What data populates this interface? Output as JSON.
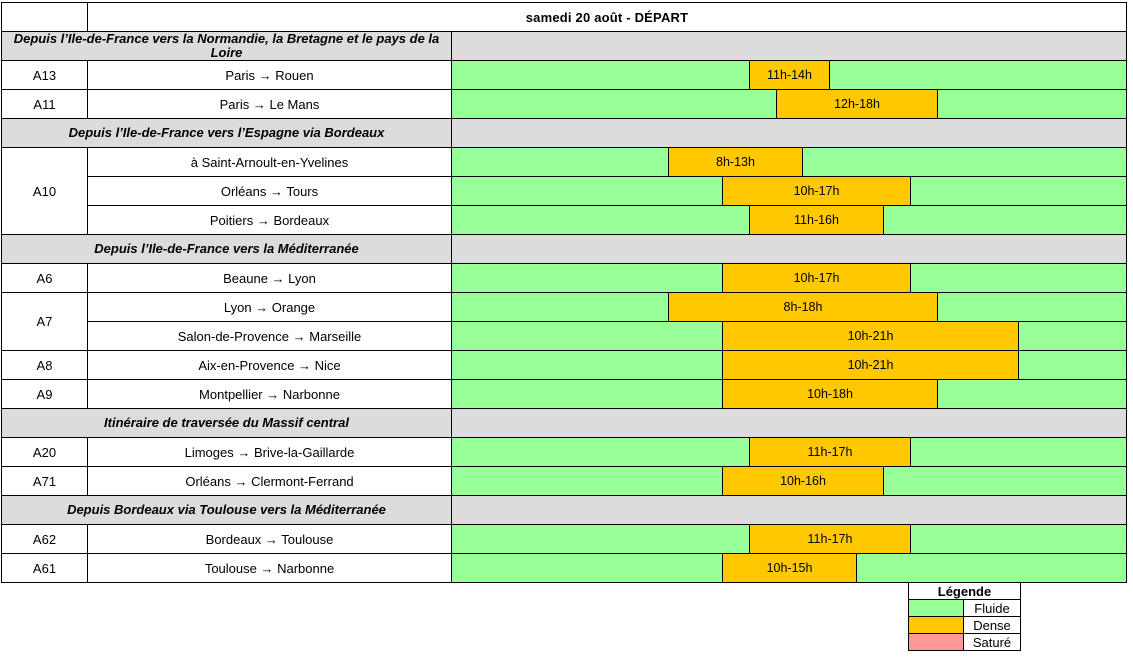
{
  "title": "samedi 20 août - DÉPART",
  "colors": {
    "fluide": "#99FF99",
    "dense": "#FFC800",
    "sature": "#FF9999",
    "section_bg": "#DCDCDC",
    "border": "#000000"
  },
  "timeline": {
    "hours_span": 25
  },
  "sections": [
    {
      "header": "Depuis l’Ile-de-France vers la Normandie, la Bretagne et le pays de la Loire",
      "rows": [
        {
          "road": "A13",
          "span": 1,
          "route": "Paris → Rouen",
          "band": {
            "label": "11h-14h",
            "start": 11,
            "end": 14
          }
        },
        {
          "road": "A11",
          "span": 1,
          "route": "Paris → Le Mans",
          "band": {
            "label": "12h-18h",
            "start": 12,
            "end": 18
          }
        }
      ]
    },
    {
      "header": "Depuis l’Ile-de-France vers l’Espagne via Bordeaux",
      "rows": [
        {
          "road": "A10",
          "span": 3,
          "route": "à Saint-Arnoult-en-Yvelines",
          "band": {
            "label": "8h-13h",
            "start": 8,
            "end": 13
          }
        },
        {
          "route": "Orléans → Tours",
          "band": {
            "label": "10h-17h",
            "start": 10,
            "end": 17
          }
        },
        {
          "route": "Poitiers → Bordeaux",
          "band": {
            "label": "11h-16h",
            "start": 11,
            "end": 16
          }
        }
      ]
    },
    {
      "header": "Depuis l’Ile-de-France vers la Méditerranée",
      "rows": [
        {
          "road": "A6",
          "span": 1,
          "route": "Beaune → Lyon",
          "band": {
            "label": "10h-17h",
            "start": 10,
            "end": 17
          }
        },
        {
          "road": "A7",
          "span": 2,
          "route": "Lyon → Orange",
          "band": {
            "label": "8h-18h",
            "start": 8,
            "end": 18
          }
        },
        {
          "route": "Salon-de-Provence → Marseille",
          "band": {
            "label": "10h-21h",
            "start": 10,
            "end": 21
          }
        },
        {
          "road": "A8",
          "span": 1,
          "route": "Aix-en-Provence → Nice",
          "band": {
            "label": "10h-21h",
            "start": 10,
            "end": 21
          }
        },
        {
          "road": "A9",
          "span": 1,
          "route": "Montpellier → Narbonne",
          "band": {
            "label": "10h-18h",
            "start": 10,
            "end": 18
          }
        }
      ]
    },
    {
      "header": "Itinéraire de traversée du Massif central",
      "rows": [
        {
          "road": "A20",
          "span": 1,
          "route": "Limoges → Brive-la-Gaillarde",
          "band": {
            "label": "11h-17h",
            "start": 11,
            "end": 17
          }
        },
        {
          "road": "A71",
          "span": 1,
          "route": "Orléans → Clermont-Ferrand",
          "band": {
            "label": "10h-16h",
            "start": 10,
            "end": 16
          }
        }
      ]
    },
    {
      "header": "Depuis Bordeaux via Toulouse vers la Méditerranée",
      "rows": [
        {
          "road": "A62",
          "span": 1,
          "route": "Bordeaux → Toulouse",
          "band": {
            "label": "11h-17h",
            "start": 11,
            "end": 17
          }
        },
        {
          "road": "A61",
          "span": 1,
          "route": "Toulouse → Narbonne",
          "band": {
            "label": "10h-15h",
            "start": 10,
            "end": 15
          }
        }
      ]
    }
  ],
  "legend": {
    "title": "Légende",
    "items": [
      {
        "label": "Fluide",
        "color": "#99FF99"
      },
      {
        "label": "Dense",
        "color": "#FFC800"
      },
      {
        "label": "Saturé",
        "color": "#FF9999"
      }
    ]
  },
  "chart_data": {
    "type": "table",
    "title": "samedi 20 août - DÉPART",
    "x_axis": {
      "unit": "hour of day",
      "range": [
        0,
        25
      ]
    },
    "legend": [
      "Fluide",
      "Dense",
      "Saturé"
    ],
    "rows": [
      {
        "road": "A13",
        "route": "Paris → Rouen",
        "dense_period": [
          11,
          14
        ],
        "dense_label": "11h-14h"
      },
      {
        "road": "A11",
        "route": "Paris → Le Mans",
        "dense_period": [
          12,
          18
        ],
        "dense_label": "12h-18h"
      },
      {
        "road": "A10",
        "route": "à Saint-Arnoult-en-Yvelines",
        "dense_period": [
          8,
          13
        ],
        "dense_label": "8h-13h"
      },
      {
        "road": "A10",
        "route": "Orléans → Tours",
        "dense_period": [
          10,
          17
        ],
        "dense_label": "10h-17h"
      },
      {
        "road": "A10",
        "route": "Poitiers → Bordeaux",
        "dense_period": [
          11,
          16
        ],
        "dense_label": "11h-16h"
      },
      {
        "road": "A6",
        "route": "Beaune → Lyon",
        "dense_period": [
          10,
          17
        ],
        "dense_label": "10h-17h"
      },
      {
        "road": "A7",
        "route": "Lyon → Orange",
        "dense_period": [
          8,
          18
        ],
        "dense_label": "8h-18h"
      },
      {
        "road": "A7",
        "route": "Salon-de-Provence → Marseille",
        "dense_period": [
          10,
          21
        ],
        "dense_label": "10h-21h"
      },
      {
        "road": "A8",
        "route": "Aix-en-Provence → Nice",
        "dense_period": [
          10,
          21
        ],
        "dense_label": "10h-21h"
      },
      {
        "road": "A9",
        "route": "Montpellier → Narbonne",
        "dense_period": [
          10,
          18
        ],
        "dense_label": "10h-18h"
      },
      {
        "road": "A20",
        "route": "Limoges → Brive-la-Gaillarde",
        "dense_period": [
          11,
          17
        ],
        "dense_label": "11h-17h"
      },
      {
        "road": "A71",
        "route": "Orléans → Clermont-Ferrand",
        "dense_period": [
          10,
          16
        ],
        "dense_label": "10h-16h"
      },
      {
        "road": "A62",
        "route": "Bordeaux → Toulouse",
        "dense_period": [
          11,
          17
        ],
        "dense_label": "11h-17h"
      },
      {
        "road": "A61",
        "route": "Toulouse → Narbonne",
        "dense_period": [
          10,
          15
        ],
        "dense_label": "10h-15h"
      }
    ]
  }
}
